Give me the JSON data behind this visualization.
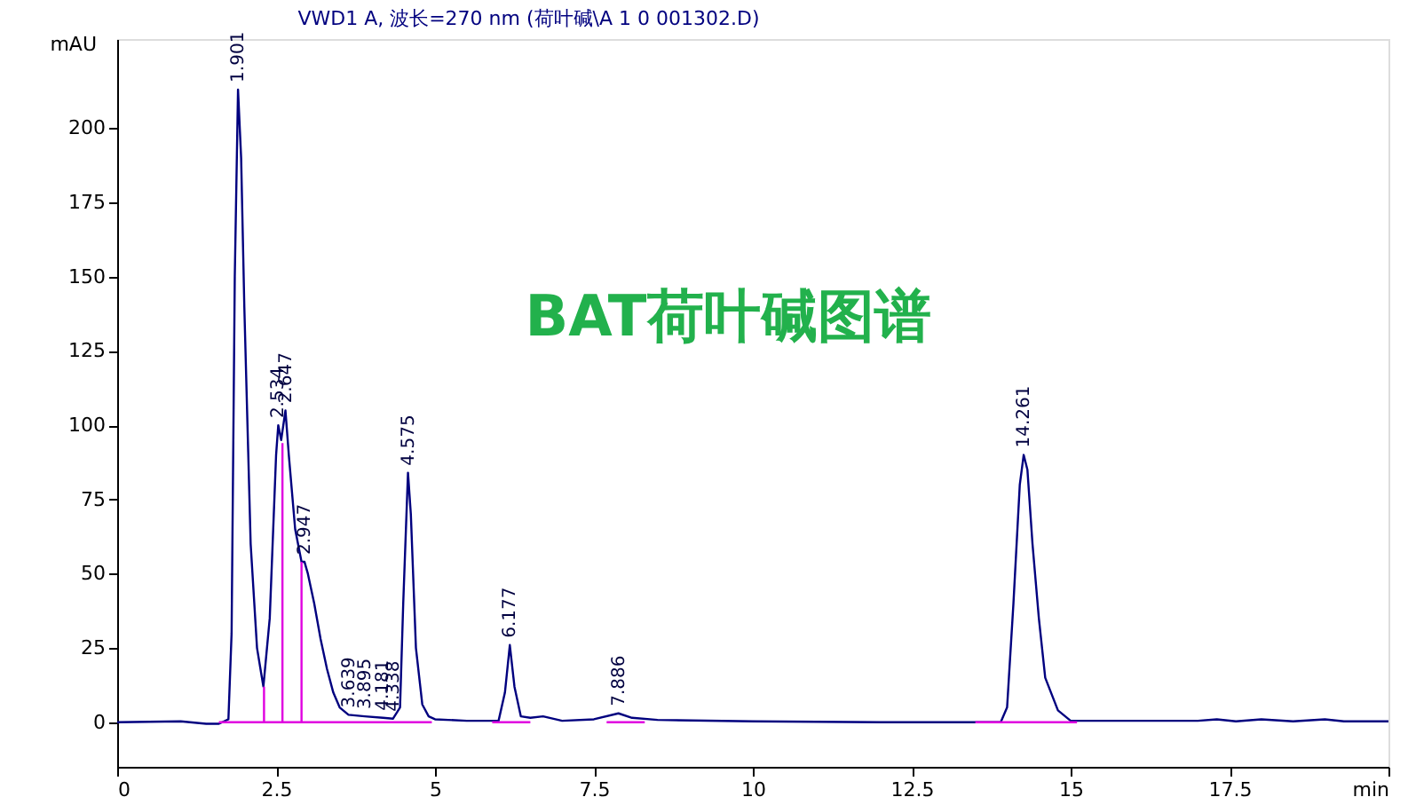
{
  "chart_data": {
    "type": "line",
    "title": "VWD1 A, 波长=270 nm (荷叶碱\\A 1 0 001302.D)",
    "ylabel": "mAU",
    "xlim": [
      0,
      20
    ],
    "ylim": [
      -15,
      230
    ],
    "xticks": [
      0,
      2.5,
      5,
      7.5,
      10,
      12.5,
      15,
      17.5,
      {
        "value": 20,
        "label": "min"
      }
    ],
    "yticks": [
      0,
      25,
      50,
      75,
      100,
      125,
      150,
      175,
      200
    ],
    "series": [
      {
        "color": "#00007f",
        "x": [
          0,
          1.0,
          1.4,
          1.6,
          1.75,
          1.8,
          1.85,
          1.901,
          1.95,
          2.0,
          2.1,
          2.2,
          2.3,
          2.4,
          2.5,
          2.534,
          2.58,
          2.647,
          2.7,
          2.8,
          2.9,
          2.947,
          3.0,
          3.1,
          3.2,
          3.3,
          3.4,
          3.5,
          3.639,
          3.895,
          4.181,
          4.338,
          4.45,
          4.5,
          4.575,
          4.62,
          4.7,
          4.8,
          4.9,
          5.0,
          5.5,
          6.0,
          6.1,
          6.177,
          6.25,
          6.35,
          6.5,
          6.7,
          7.0,
          7.5,
          7.886,
          8.1,
          8.5,
          10,
          12,
          13.9,
          14.0,
          14.1,
          14.2,
          14.261,
          14.32,
          14.4,
          14.5,
          14.6,
          14.8,
          15.0,
          17.0,
          17.3,
          17.6,
          18.0,
          18.5,
          19,
          19.3,
          20
        ],
        "values": [
          0,
          0.3,
          -0.5,
          -0.5,
          1,
          30,
          150,
          213,
          190,
          140,
          60,
          25,
          12,
          35,
          90,
          100,
          95,
          105,
          90,
          65,
          54,
          54,
          50,
          40,
          28,
          18,
          10,
          5,
          2.5,
          2,
          1.5,
          1.2,
          5,
          40,
          84,
          70,
          25,
          6,
          2,
          1,
          0.5,
          0.5,
          10,
          26,
          12,
          2,
          1.5,
          2,
          0.5,
          1,
          3,
          1.5,
          0.8,
          0.3,
          0,
          0,
          5,
          40,
          80,
          90,
          85,
          60,
          35,
          15,
          4,
          0.5,
          0.5,
          1,
          0.3,
          1,
          0.3,
          1,
          0.3,
          0.3
        ]
      },
      {
        "color": "#e000e0",
        "x": [
          1.6,
          4.95,
          null,
          2.31,
          2.31,
          null,
          2.6,
          2.6,
          null,
          2.9,
          2.9,
          null,
          5.9,
          6.5,
          null,
          7.7,
          8.3,
          null,
          13.5,
          15.1
        ],
        "values": [
          0,
          0,
          null,
          0,
          12,
          null,
          0,
          94,
          null,
          0,
          54,
          null,
          0,
          0,
          null,
          0,
          0,
          null,
          0,
          0
        ]
      }
    ],
    "annotations": [
      "BAT荷叶碱图谱",
      {
        "text": "1.901",
        "x": 1.901,
        "y": 213
      },
      {
        "text": "2.534",
        "x": 2.534,
        "y": 100
      },
      {
        "text": "2.647",
        "x": 2.647,
        "y": 105
      },
      {
        "text": "2.947",
        "x": 2.947,
        "y": 54
      },
      {
        "text": "3.639",
        "x": 3.639,
        "y": 2.5
      },
      {
        "text": "3.895",
        "x": 3.895,
        "y": 2
      },
      {
        "text": "4.181",
        "x": 4.181,
        "y": 1.5
      },
      {
        "text": "4.338",
        "x": 4.338,
        "y": 1.2
      },
      {
        "text": "4.575",
        "x": 4.575,
        "y": 84
      },
      {
        "text": "6.177",
        "x": 6.177,
        "y": 26
      },
      {
        "text": "7.886",
        "x": 7.886,
        "y": 3
      },
      {
        "text": "14.261",
        "x": 14.261,
        "y": 90
      }
    ]
  }
}
